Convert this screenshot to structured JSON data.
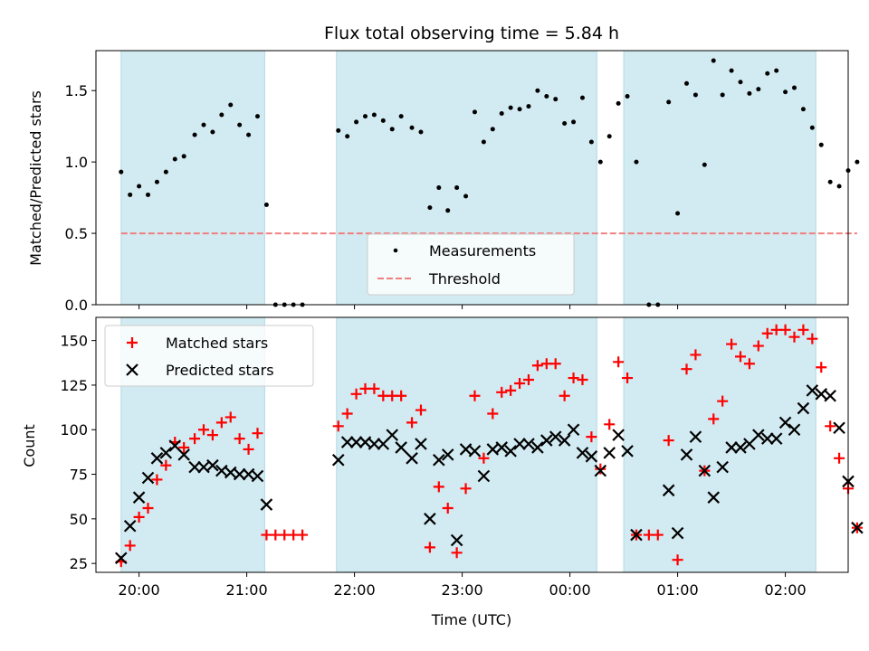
{
  "chart_data": [
    {
      "type": "scatter",
      "title": "Flux total observing time = 5.84 h",
      "xlabel": "",
      "ylabel": "Matched/Predicted stars",
      "ylim": [
        0,
        1.78
      ],
      "yticks": [
        "0.0",
        "0.5",
        "1.0",
        "1.5"
      ],
      "xticks": [
        "20:00",
        "21:00",
        "22:00",
        "23:00",
        "00:00",
        "01:00",
        "02:00"
      ],
      "shaded_intervals": [
        [
          "19:50",
          "21:10"
        ],
        [
          "21:50",
          "00:15"
        ],
        [
          "00:30",
          "02:17"
        ]
      ],
      "shade_color": "#add8e6",
      "legend_position": "lower center",
      "series": [
        {
          "name": "Measurements",
          "marker": "dot",
          "color": "#000000",
          "points": [
            [
              "19:50",
              0.93
            ],
            [
              "19:55",
              0.77
            ],
            [
              "20:00",
              0.83
            ],
            [
              "20:05",
              0.77
            ],
            [
              "20:10",
              0.86
            ],
            [
              "20:15",
              0.93
            ],
            [
              "20:20",
              1.02
            ],
            [
              "20:25",
              1.04
            ],
            [
              "20:31",
              1.19
            ],
            [
              "20:36",
              1.26
            ],
            [
              "20:41",
              1.21
            ],
            [
              "20:46",
              1.33
            ],
            [
              "20:51",
              1.4
            ],
            [
              "20:56",
              1.26
            ],
            [
              "21:01",
              1.19
            ],
            [
              "21:06",
              1.32
            ],
            [
              "21:11",
              0.7
            ],
            [
              "21:16",
              0.0
            ],
            [
              "21:21",
              0.0
            ],
            [
              "21:26",
              0.0
            ],
            [
              "21:31",
              0.0
            ],
            [
              "21:51",
              1.22
            ],
            [
              "21:56",
              1.18
            ],
            [
              "22:01",
              1.28
            ],
            [
              "22:06",
              1.32
            ],
            [
              "22:11",
              1.33
            ],
            [
              "22:16",
              1.29
            ],
            [
              "22:21",
              1.23
            ],
            [
              "22:26",
              1.32
            ],
            [
              "22:32",
              1.24
            ],
            [
              "22:37",
              1.21
            ],
            [
              "22:42",
              0.68
            ],
            [
              "22:47",
              0.82
            ],
            [
              "22:52",
              0.66
            ],
            [
              "22:57",
              0.82
            ],
            [
              "23:02",
              0.76
            ],
            [
              "23:07",
              1.35
            ],
            [
              "23:12",
              1.14
            ],
            [
              "23:17",
              1.23
            ],
            [
              "23:22",
              1.34
            ],
            [
              "23:27",
              1.38
            ],
            [
              "23:32",
              1.37
            ],
            [
              "23:37",
              1.39
            ],
            [
              "23:42",
              1.5
            ],
            [
              "23:47",
              1.46
            ],
            [
              "23:52",
              1.44
            ],
            [
              "23:57",
              1.27
            ],
            [
              "00:02",
              1.28
            ],
            [
              "00:07",
              1.45
            ],
            [
              "00:12",
              1.14
            ],
            [
              "00:17",
              1.0
            ],
            [
              "00:22",
              1.18
            ],
            [
              "00:27",
              1.41
            ],
            [
              "00:32",
              1.46
            ],
            [
              "00:37",
              1.0
            ],
            [
              "00:44",
              0.0
            ],
            [
              "00:49",
              0.0
            ],
            [
              "00:55",
              1.42
            ],
            [
              "01:00",
              0.64
            ],
            [
              "01:05",
              1.55
            ],
            [
              "01:10",
              1.47
            ],
            [
              "01:15",
              0.98
            ],
            [
              "01:20",
              1.71
            ],
            [
              "01:25",
              1.47
            ],
            [
              "01:30",
              1.64
            ],
            [
              "01:35",
              1.56
            ],
            [
              "01:40",
              1.48
            ],
            [
              "01:45",
              1.51
            ],
            [
              "01:50",
              1.62
            ],
            [
              "01:55",
              1.64
            ],
            [
              "02:00",
              1.49
            ],
            [
              "02:05",
              1.52
            ],
            [
              "02:10",
              1.37
            ],
            [
              "02:15",
              1.24
            ],
            [
              "02:20",
              1.12
            ],
            [
              "02:25",
              0.86
            ],
            [
              "02:30",
              0.83
            ],
            [
              "02:35",
              0.94
            ],
            [
              "02:40",
              1.0
            ]
          ]
        },
        {
          "name": "Threshold",
          "marker": "dashed-line",
          "color": "#f08080",
          "value": 0.5
        }
      ]
    },
    {
      "type": "scatter",
      "title": "",
      "xlabel": "Time (UTC)",
      "ylabel": "Count",
      "ylim": [
        20,
        163
      ],
      "yticks": [
        "25",
        "50",
        "75",
        "100",
        "125",
        "150"
      ],
      "xticks": [
        "20:00",
        "21:00",
        "22:00",
        "23:00",
        "00:00",
        "01:00",
        "02:00"
      ],
      "shaded_intervals": [
        [
          "19:50",
          "21:10"
        ],
        [
          "21:50",
          "00:15"
        ],
        [
          "00:30",
          "02:17"
        ]
      ],
      "shade_color": "#add8e6",
      "legend_position": "upper left",
      "series": [
        {
          "name": "Matched stars",
          "marker": "plus",
          "color": "#ff0000",
          "points": [
            [
              "19:50",
              26
            ],
            [
              "19:55",
              35
            ],
            [
              "20:00",
              51
            ],
            [
              "20:05",
              56
            ],
            [
              "20:10",
              72
            ],
            [
              "20:15",
              80
            ],
            [
              "20:20",
              93
            ],
            [
              "20:25",
              90
            ],
            [
              "20:31",
              95
            ],
            [
              "20:36",
              100
            ],
            [
              "20:41",
              97
            ],
            [
              "20:46",
              104
            ],
            [
              "20:51",
              107
            ],
            [
              "20:56",
              95
            ],
            [
              "21:01",
              89
            ],
            [
              "21:06",
              98
            ],
            [
              "21:11",
              41
            ],
            [
              "21:16",
              41
            ],
            [
              "21:21",
              41
            ],
            [
              "21:26",
              41
            ],
            [
              "21:31",
              41
            ],
            [
              "21:51",
              102
            ],
            [
              "21:56",
              109
            ],
            [
              "22:01",
              120
            ],
            [
              "22:06",
              123
            ],
            [
              "22:11",
              123
            ],
            [
              "22:16",
              119
            ],
            [
              "22:21",
              119
            ],
            [
              "22:26",
              119
            ],
            [
              "22:32",
              104
            ],
            [
              "22:37",
              111
            ],
            [
              "22:42",
              34
            ],
            [
              "22:47",
              68
            ],
            [
              "22:52",
              56
            ],
            [
              "22:57",
              31
            ],
            [
              "23:02",
              67
            ],
            [
              "23:07",
              119
            ],
            [
              "23:12",
              84
            ],
            [
              "23:17",
              109
            ],
            [
              "23:22",
              121
            ],
            [
              "23:27",
              122
            ],
            [
              "23:32",
              126
            ],
            [
              "23:37",
              128
            ],
            [
              "23:42",
              136
            ],
            [
              "23:47",
              137
            ],
            [
              "23:52",
              137
            ],
            [
              "23:57",
              119
            ],
            [
              "00:02",
              129
            ],
            [
              "00:07",
              128
            ],
            [
              "00:12",
              96
            ],
            [
              "00:17",
              78
            ],
            [
              "00:22",
              103
            ],
            [
              "00:27",
              138
            ],
            [
              "00:32",
              129
            ],
            [
              "00:37",
              41
            ],
            [
              "00:44",
              41
            ],
            [
              "00:49",
              41
            ],
            [
              "00:55",
              94
            ],
            [
              "01:00",
              27
            ],
            [
              "01:05",
              134
            ],
            [
              "01:10",
              142
            ],
            [
              "01:15",
              77
            ],
            [
              "01:20",
              106
            ],
            [
              "01:25",
              116
            ],
            [
              "01:30",
              148
            ],
            [
              "01:35",
              141
            ],
            [
              "01:40",
              137
            ],
            [
              "01:45",
              147
            ],
            [
              "01:50",
              154
            ],
            [
              "01:55",
              156
            ],
            [
              "02:00",
              156
            ],
            [
              "02:05",
              152
            ],
            [
              "02:10",
              156
            ],
            [
              "02:15",
              151
            ],
            [
              "02:20",
              135
            ],
            [
              "02:25",
              102
            ],
            [
              "02:30",
              84
            ],
            [
              "02:35",
              67
            ],
            [
              "02:40",
              45
            ]
          ]
        },
        {
          "name": "Predicted stars",
          "marker": "x",
          "color": "#000000",
          "points": [
            [
              "19:50",
              28
            ],
            [
              "19:55",
              46
            ],
            [
              "20:00",
              62
            ],
            [
              "20:05",
              73
            ],
            [
              "20:10",
              84
            ],
            [
              "20:15",
              87
            ],
            [
              "20:20",
              91
            ],
            [
              "20:25",
              86
            ],
            [
              "20:31",
              79
            ],
            [
              "20:36",
              79
            ],
            [
              "20:41",
              80
            ],
            [
              "20:46",
              77
            ],
            [
              "20:51",
              76
            ],
            [
              "20:56",
              75
            ],
            [
              "21:01",
              75
            ],
            [
              "21:06",
              74
            ],
            [
              "21:11",
              58
            ],
            [
              "21:51",
              83
            ],
            [
              "21:56",
              93
            ],
            [
              "22:01",
              93
            ],
            [
              "22:06",
              93
            ],
            [
              "22:11",
              92
            ],
            [
              "22:16",
              92
            ],
            [
              "22:21",
              97
            ],
            [
              "22:26",
              90
            ],
            [
              "22:32",
              84
            ],
            [
              "22:37",
              92
            ],
            [
              "22:42",
              50
            ],
            [
              "22:47",
              83
            ],
            [
              "22:52",
              86
            ],
            [
              "22:57",
              38
            ],
            [
              "23:02",
              89
            ],
            [
              "23:07",
              88
            ],
            [
              "23:12",
              74
            ],
            [
              "23:17",
              89
            ],
            [
              "23:22",
              90
            ],
            [
              "23:27",
              88
            ],
            [
              "23:32",
              92
            ],
            [
              "23:37",
              92
            ],
            [
              "23:42",
              90
            ],
            [
              "23:47",
              94
            ],
            [
              "23:52",
              96
            ],
            [
              "23:57",
              94
            ],
            [
              "00:02",
              100
            ],
            [
              "00:07",
              87
            ],
            [
              "00:12",
              85
            ],
            [
              "00:17",
              77
            ],
            [
              "00:22",
              87
            ],
            [
              "00:27",
              97
            ],
            [
              "00:32",
              88
            ],
            [
              "00:37",
              41
            ],
            [
              "00:55",
              66
            ],
            [
              "01:00",
              42
            ],
            [
              "01:05",
              86
            ],
            [
              "01:10",
              96
            ],
            [
              "01:15",
              77
            ],
            [
              "01:20",
              62
            ],
            [
              "01:25",
              79
            ],
            [
              "01:30",
              90
            ],
            [
              "01:35",
              90
            ],
            [
              "01:40",
              92
            ],
            [
              "01:45",
              97
            ],
            [
              "01:50",
              95
            ],
            [
              "01:55",
              95
            ],
            [
              "02:00",
              104
            ],
            [
              "02:05",
              100
            ],
            [
              "02:10",
              112
            ],
            [
              "02:15",
              122
            ],
            [
              "02:20",
              120
            ],
            [
              "02:25",
              119
            ],
            [
              "02:30",
              101
            ],
            [
              "02:35",
              71
            ],
            [
              "02:40",
              45
            ]
          ]
        }
      ]
    }
  ]
}
